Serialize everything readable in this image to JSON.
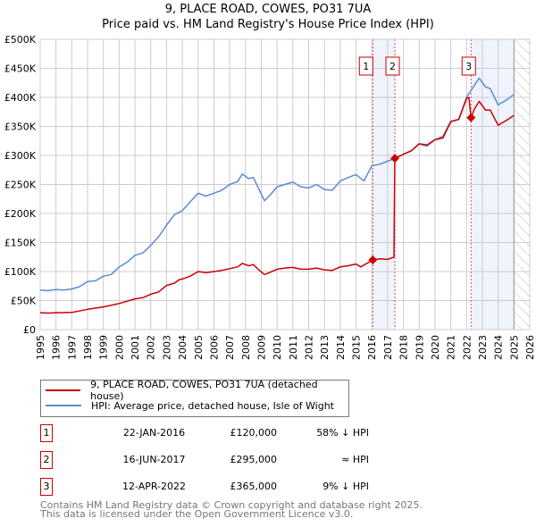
{
  "title": "9, PLACE ROAD, COWES, PO31 7UA",
  "subtitle": "Price paid vs. HM Land Registry's House Price Index (HPI)",
  "colors": {
    "property": "#cc0000",
    "hpi": "#5b8bd0",
    "shade": "#eef3fc",
    "grid": "#cccccc"
  },
  "chart_data": {
    "type": "line",
    "title": "9, PLACE ROAD, COWES, PO31 7UA",
    "xlim": [
      1995,
      2026
    ],
    "ylim": [
      0,
      500000
    ],
    "x_ticks": [
      "1995",
      "1996",
      "1997",
      "1998",
      "1999",
      "2000",
      "2001",
      "2002",
      "2003",
      "2004",
      "2005",
      "2006",
      "2007",
      "2008",
      "2009",
      "2010",
      "2011",
      "2012",
      "2013",
      "2014",
      "2015",
      "2016",
      "2017",
      "2018",
      "2019",
      "2020",
      "2021",
      "2022",
      "2023",
      "2024",
      "2025",
      "2026"
    ],
    "y_ticks": [
      {
        "v": 0,
        "label": "£0"
      },
      {
        "v": 50000,
        "label": "£50K"
      },
      {
        "v": 100000,
        "label": "£100K"
      },
      {
        "v": 150000,
        "label": "£150K"
      },
      {
        "v": 200000,
        "label": "£200K"
      },
      {
        "v": 250000,
        "label": "£250K"
      },
      {
        "v": 300000,
        "label": "£300K"
      },
      {
        "v": 350000,
        "label": "£350K"
      },
      {
        "v": 400000,
        "label": "£400K"
      },
      {
        "v": 450000,
        "label": "£450K"
      },
      {
        "v": 500000,
        "label": "£500K"
      }
    ],
    "series": [
      {
        "name": "9, PLACE ROAD, COWES, PO31 7UA (detached house)",
        "color": "#cc0000",
        "points": [
          [
            1995,
            29000
          ],
          [
            1995.5,
            28500
          ],
          [
            1996,
            29000
          ],
          [
            1997,
            29500
          ],
          [
            1998,
            35000
          ],
          [
            1999,
            39000
          ],
          [
            2000,
            45000
          ],
          [
            2001,
            53000
          ],
          [
            2001.5,
            55000
          ],
          [
            2002,
            61000
          ],
          [
            2002.5,
            65000
          ],
          [
            2003,
            76000
          ],
          [
            2003.5,
            80000
          ],
          [
            2003.8,
            86000
          ],
          [
            2004,
            87000
          ],
          [
            2004.5,
            92000
          ],
          [
            2005,
            100000
          ],
          [
            2005.5,
            98000
          ],
          [
            2006,
            100000
          ],
          [
            2006.5,
            102000
          ],
          [
            2007,
            105000
          ],
          [
            2007.5,
            108000
          ],
          [
            2007.8,
            114000
          ],
          [
            2008.2,
            110000
          ],
          [
            2008.5,
            112000
          ],
          [
            2008.8,
            104000
          ],
          [
            2009.2,
            95000
          ],
          [
            2009.5,
            98000
          ],
          [
            2010,
            104000
          ],
          [
            2010.5,
            106000
          ],
          [
            2011,
            107000
          ],
          [
            2011.5,
            104000
          ],
          [
            2012,
            104000
          ],
          [
            2012.5,
            106000
          ],
          [
            2013,
            103000
          ],
          [
            2013.5,
            102000
          ],
          [
            2014,
            108000
          ],
          [
            2014.5,
            110000
          ],
          [
            2015,
            113000
          ],
          [
            2015.3,
            108000
          ],
          [
            2016.06,
            120000
          ],
          [
            2016.5,
            122000
          ],
          [
            2017,
            121000
          ],
          [
            2017.4,
            125000
          ],
          [
            2017.46,
            295000
          ],
          [
            2018,
            302000
          ],
          [
            2018.5,
            308000
          ],
          [
            2019,
            320000
          ],
          [
            2019.5,
            318000
          ],
          [
            2020,
            327000
          ],
          [
            2020.5,
            330000
          ],
          [
            2021,
            358000
          ],
          [
            2021.5,
            362000
          ],
          [
            2022,
            398000
          ],
          [
            2022.15,
            400000
          ],
          [
            2022.28,
            365000
          ],
          [
            2022.5,
            380000
          ],
          [
            2022.8,
            393000
          ],
          [
            2023.2,
            378000
          ],
          [
            2023.5,
            378000
          ],
          [
            2024,
            352000
          ],
          [
            2024.5,
            360000
          ],
          [
            2025,
            369000
          ]
        ]
      },
      {
        "name": "HPI: Average price, detached house, Isle of Wight",
        "color": "#5b8bd0",
        "points": [
          [
            1995,
            68000
          ],
          [
            1995.5,
            67000
          ],
          [
            1996,
            69000
          ],
          [
            1996.5,
            68000
          ],
          [
            1997,
            70000
          ],
          [
            1997.5,
            74000
          ],
          [
            1998,
            83000
          ],
          [
            1998.5,
            84000
          ],
          [
            1999,
            92000
          ],
          [
            1999.5,
            95000
          ],
          [
            2000,
            108000
          ],
          [
            2000.5,
            116000
          ],
          [
            2001,
            128000
          ],
          [
            2001.5,
            132000
          ],
          [
            2002,
            145000
          ],
          [
            2002.5,
            160000
          ],
          [
            2003,
            180000
          ],
          [
            2003.5,
            198000
          ],
          [
            2004,
            205000
          ],
          [
            2004.5,
            220000
          ],
          [
            2005,
            235000
          ],
          [
            2005.5,
            230000
          ],
          [
            2006,
            235000
          ],
          [
            2006.5,
            240000
          ],
          [
            2007,
            250000
          ],
          [
            2007.5,
            255000
          ],
          [
            2007.8,
            268000
          ],
          [
            2008.2,
            260000
          ],
          [
            2008.5,
            262000
          ],
          [
            2008.8,
            245000
          ],
          [
            2009.2,
            222000
          ],
          [
            2009.5,
            230000
          ],
          [
            2010,
            246000
          ],
          [
            2010.5,
            250000
          ],
          [
            2011,
            254000
          ],
          [
            2011.5,
            246000
          ],
          [
            2012,
            244000
          ],
          [
            2012.5,
            250000
          ],
          [
            2013,
            241000
          ],
          [
            2013.5,
            240000
          ],
          [
            2014,
            256000
          ],
          [
            2014.5,
            262000
          ],
          [
            2015,
            267000
          ],
          [
            2015.5,
            256000
          ],
          [
            2016,
            282000
          ],
          [
            2016.5,
            285000
          ],
          [
            2017,
            290000
          ],
          [
            2017.46,
            295000
          ],
          [
            2018,
            302000
          ],
          [
            2018.5,
            308000
          ],
          [
            2019,
            320000
          ],
          [
            2019.5,
            316000
          ],
          [
            2020,
            327000
          ],
          [
            2020.5,
            333000
          ],
          [
            2021,
            359000
          ],
          [
            2021.5,
            362000
          ],
          [
            2022,
            400000
          ],
          [
            2022.3,
            413000
          ],
          [
            2022.8,
            433000
          ],
          [
            2023.2,
            418000
          ],
          [
            2023.5,
            415000
          ],
          [
            2024,
            387000
          ],
          [
            2024.5,
            395000
          ],
          [
            2025,
            405000
          ]
        ]
      }
    ],
    "sales": [
      {
        "id": "1",
        "x": 2016.06,
        "y": 120000
      },
      {
        "id": "2",
        "x": 2017.46,
        "y": 295000
      },
      {
        "id": "3",
        "x": 2022.28,
        "y": 365000
      }
    ],
    "shaded_ranges": [
      [
        2016.06,
        2017.46
      ],
      [
        2022.28,
        2025.0
      ]
    ],
    "forecast_hatch_from": 2025.0,
    "legend": "below"
  },
  "legend": {
    "property": "9, PLACE ROAD, COWES, PO31 7UA (detached house)",
    "hpi": "HPI: Average price, detached house, Isle of Wight"
  },
  "transactions": [
    {
      "id": "1",
      "date": "22-JAN-2016",
      "price": "£120,000",
      "hpi": "58% ↓ HPI"
    },
    {
      "id": "2",
      "date": "16-JUN-2017",
      "price": "£295,000",
      "hpi": "≈ HPI"
    },
    {
      "id": "3",
      "date": "12-APR-2022",
      "price": "£365,000",
      "hpi": "9% ↓ HPI"
    }
  ],
  "footer": {
    "line1": "Contains HM Land Registry data © Crown copyright and database right 2025.",
    "line2": "This data is licensed under the Open Government Licence v3.0."
  }
}
